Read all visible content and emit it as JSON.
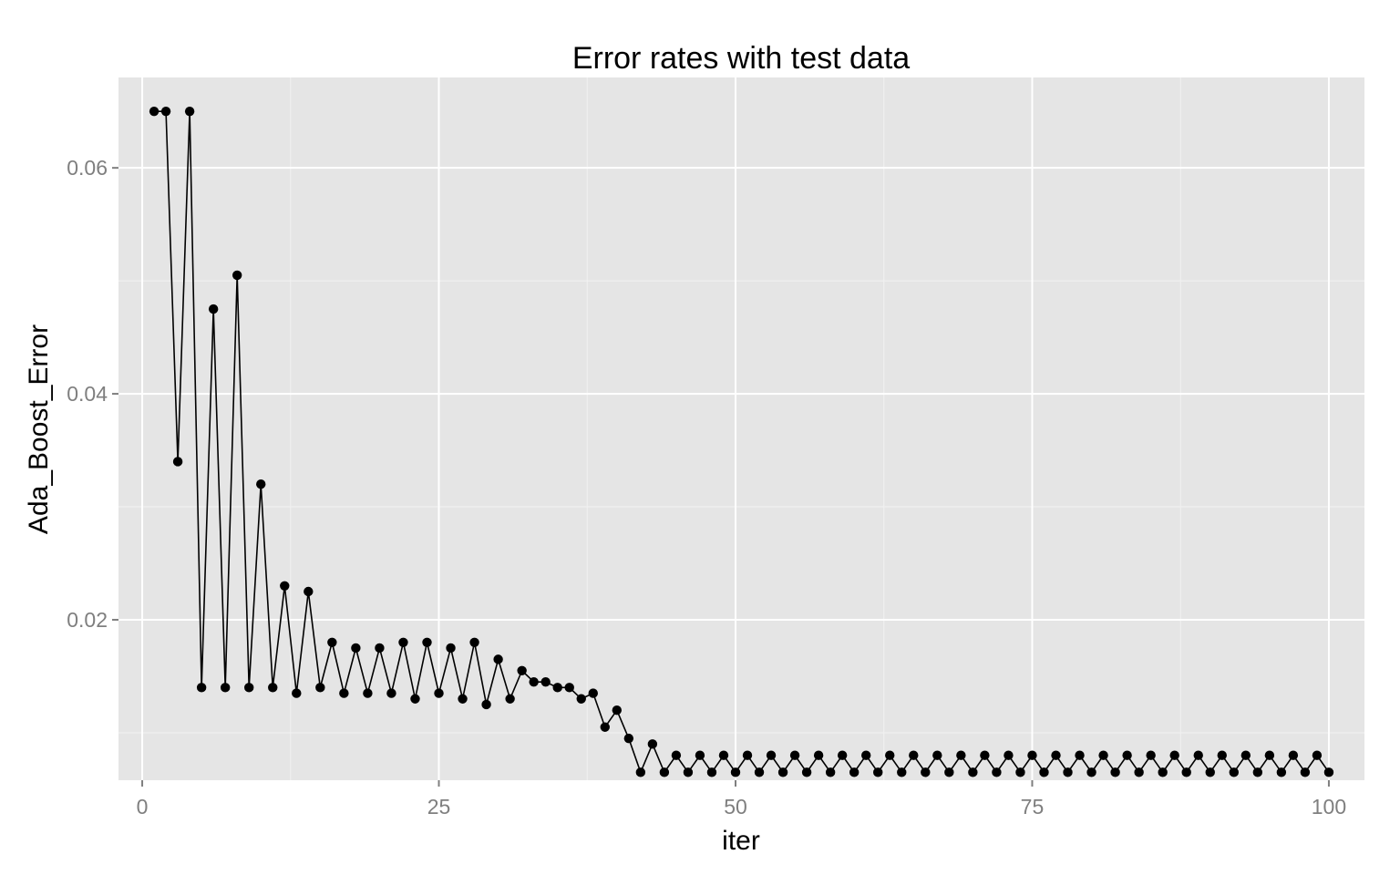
{
  "chart_data": {
    "type": "line",
    "title": "Error rates with test data",
    "xlabel": "iter",
    "ylabel": "Ada_Boost_Error",
    "xlim": [
      -2,
      103
    ],
    "ylim": [
      0.0058,
      0.068
    ],
    "grid": true,
    "legend": "none",
    "colors": {
      "panel": "#e5e5e5",
      "grid_major": "#ffffff",
      "grid_minor": "#f2f2f2",
      "line": "#000000",
      "point": "#000000"
    },
    "x_ticks": [
      0,
      25,
      50,
      75,
      100
    ],
    "x_tick_labels": [
      "0",
      "25",
      "50",
      "75",
      "100"
    ],
    "y_ticks": [
      0.02,
      0.04,
      0.06
    ],
    "y_tick_labels": [
      "0.02",
      "0.04",
      "0.06"
    ],
    "series": [
      {
        "x": [
          1,
          2,
          3,
          4,
          5,
          6,
          7,
          8,
          9,
          10,
          11,
          12,
          13,
          14,
          15,
          16,
          17,
          18,
          19,
          20,
          21,
          22,
          23,
          24,
          25,
          26,
          27,
          28,
          29,
          30,
          31,
          32,
          33,
          34,
          35,
          36,
          37,
          38,
          39,
          40,
          41,
          42,
          43,
          44,
          45,
          46,
          47,
          48,
          49,
          50,
          51,
          52,
          53,
          54,
          55,
          56,
          57,
          58,
          59,
          60,
          61,
          62,
          63,
          64,
          65,
          66,
          67,
          68,
          69,
          70,
          71,
          72,
          73,
          74,
          75,
          76,
          77,
          78,
          79,
          80,
          81,
          82,
          83,
          84,
          85,
          86,
          87,
          88,
          89,
          90,
          91,
          92,
          93,
          94,
          95,
          96,
          97,
          98,
          99,
          100
        ],
        "y": [
          0.065,
          0.065,
          0.034,
          0.065,
          0.014,
          0.0475,
          0.014,
          0.0505,
          0.014,
          0.032,
          0.014,
          0.023,
          0.0135,
          0.0225,
          0.014,
          0.018,
          0.0135,
          0.0175,
          0.0135,
          0.0175,
          0.0135,
          0.018,
          0.013,
          0.018,
          0.0135,
          0.0175,
          0.013,
          0.018,
          0.0125,
          0.0165,
          0.013,
          0.0155,
          0.0145,
          0.0145,
          0.014,
          0.014,
          0.013,
          0.0135,
          0.0105,
          0.012,
          0.0095,
          0.0065,
          0.009,
          0.0065,
          0.008,
          0.0065,
          0.008,
          0.0065,
          0.008,
          0.0065,
          0.008,
          0.0065,
          0.008,
          0.0065,
          0.008,
          0.0065,
          0.008,
          0.0065,
          0.008,
          0.0065,
          0.008,
          0.0065,
          0.008,
          0.0065,
          0.008,
          0.0065,
          0.008,
          0.0065,
          0.008,
          0.0065,
          0.008,
          0.0065,
          0.008,
          0.0065,
          0.008,
          0.0065,
          0.008,
          0.0065,
          0.008,
          0.0065,
          0.008,
          0.0065,
          0.008,
          0.0065,
          0.008,
          0.0065,
          0.008,
          0.0065,
          0.008,
          0.0065,
          0.008,
          0.0065,
          0.008,
          0.0065,
          0.008,
          0.0065,
          0.008,
          0.0065,
          0.008,
          0.0065
        ]
      }
    ]
  }
}
